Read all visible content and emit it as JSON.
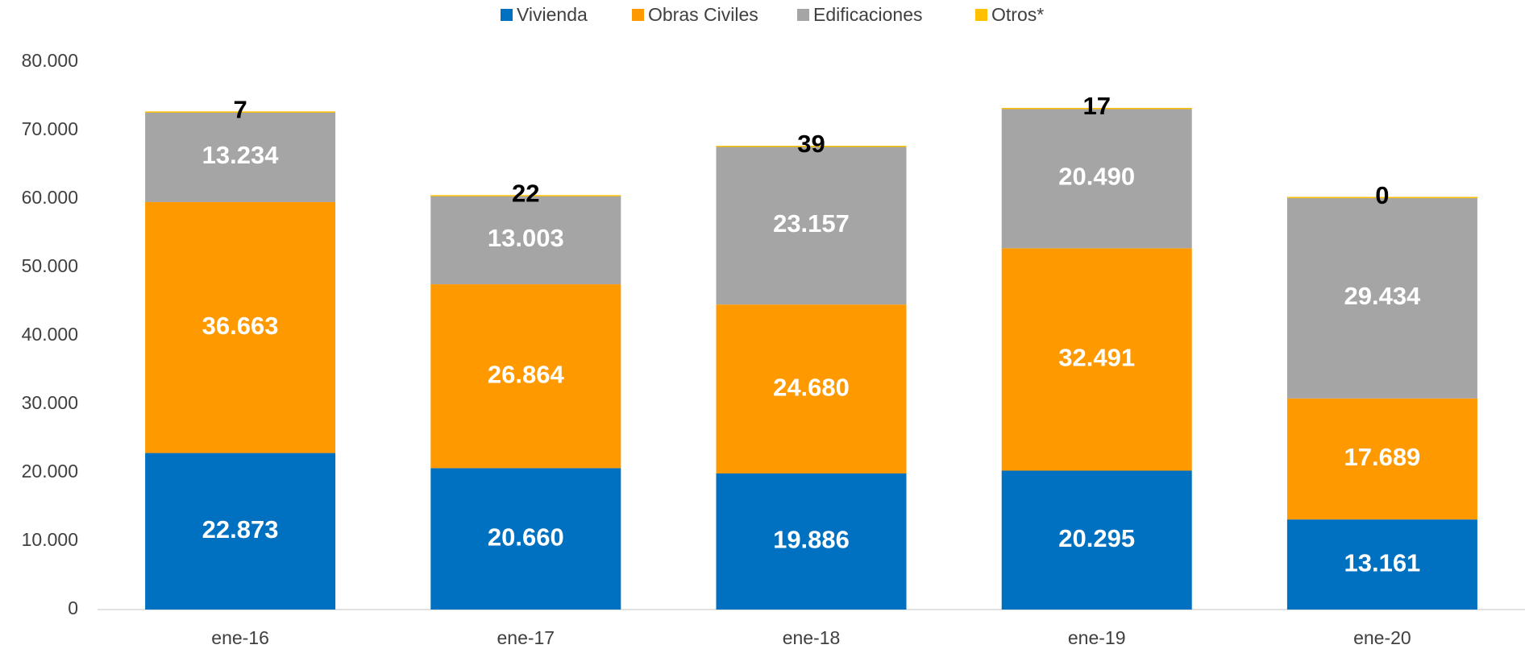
{
  "chart_data": {
    "type": "stacked_bar",
    "categories": [
      "ene-16",
      "ene-17",
      "ene-18",
      "ene-19",
      "ene-20"
    ],
    "series": [
      {
        "name": "Vivienda",
        "color": "#0070c0",
        "values": [
          22873,
          20660,
          19886,
          20295,
          13161
        ],
        "value_labels": [
          "22.873",
          "20.660",
          "19.886",
          "20.295",
          "13.161"
        ]
      },
      {
        "name": "Obras Civiles",
        "color": "#ff9900",
        "values": [
          36663,
          26864,
          24680,
          32491,
          17689
        ],
        "value_labels": [
          "36.663",
          "26.864",
          "24.680",
          "32.491",
          "17.689"
        ]
      },
      {
        "name": "Edificaciones",
        "color": "#a5a5a5",
        "values": [
          13234,
          13003,
          23157,
          20490,
          29434
        ],
        "value_labels": [
          "13.234",
          "13.003",
          "23.157",
          "20.490",
          "29.434"
        ]
      },
      {
        "name": "Otros*",
        "color": "#ffc000",
        "values": [
          7,
          22,
          39,
          17,
          0
        ]
      }
    ],
    "ylim": [
      0,
      80000
    ],
    "yticks": [
      0,
      {
        "value": 10000,
        "label": "10.000"
      },
      {
        "value": 20000,
        "label": "20.000"
      },
      {
        "value": 30000,
        "label": "30.000"
      },
      {
        "value": 40000,
        "label": "40.000"
      },
      {
        "value": 50000,
        "label": "50.000"
      },
      {
        "value": 60000,
        "label": "60.000"
      },
      {
        "value": 70000,
        "label": "70.000"
      },
      {
        "value": 80000,
        "label": "80.000"
      }
    ],
    "legend": "top"
  }
}
